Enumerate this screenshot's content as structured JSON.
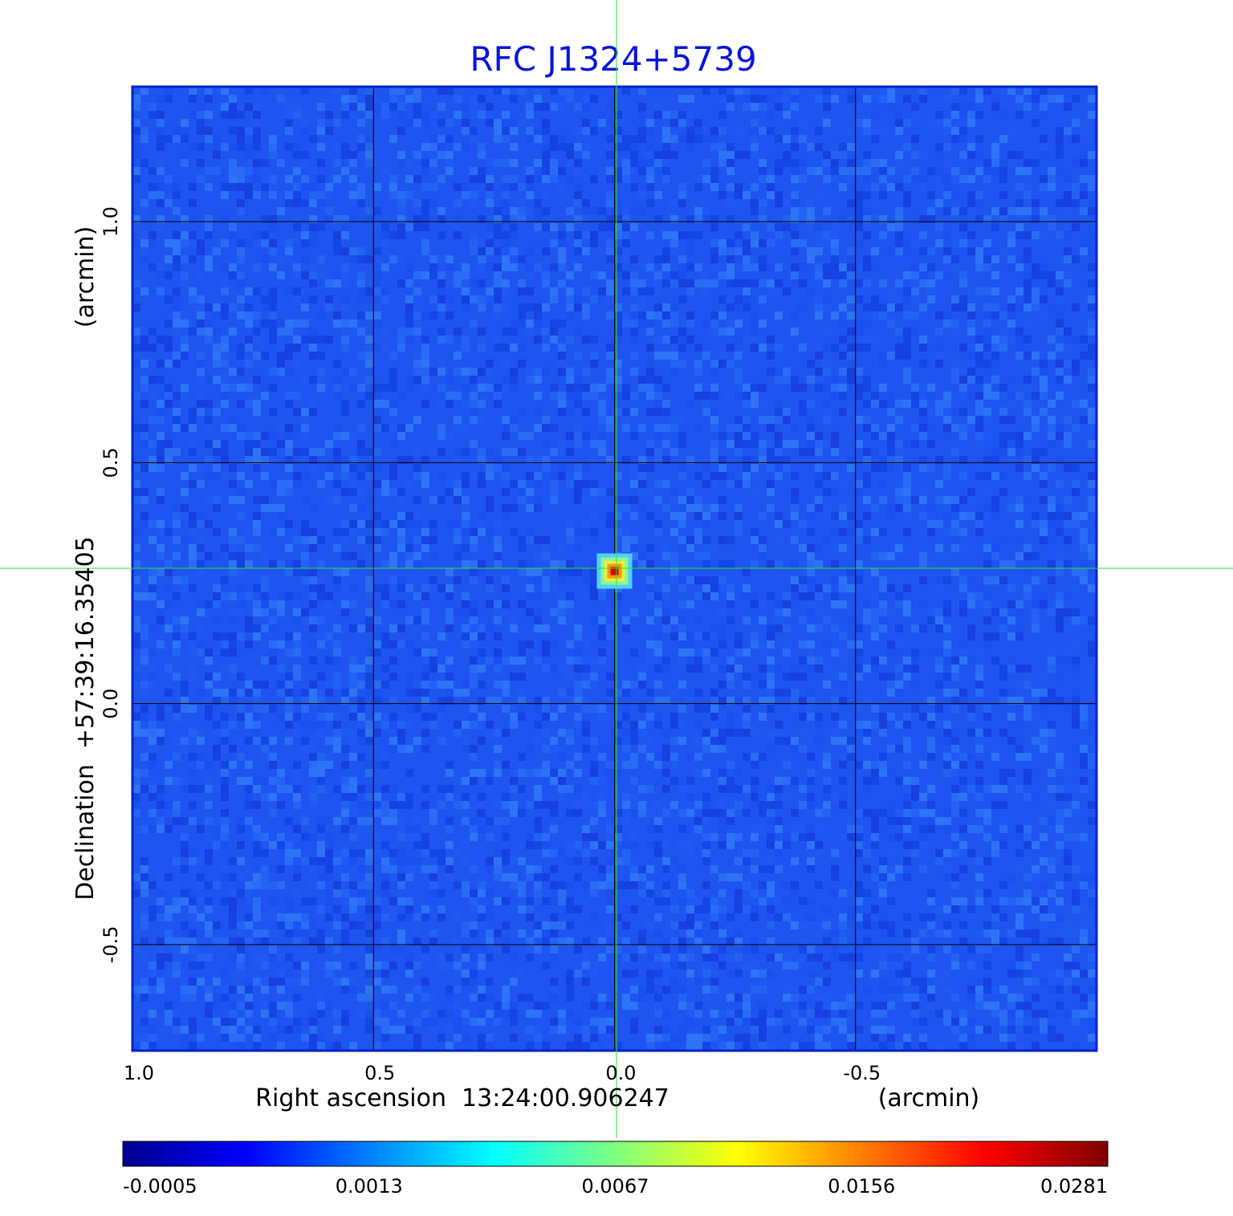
{
  "chart_data": {
    "type": "heatmap",
    "title": "RFC J1324+5739",
    "xlabel": "Right ascension  13:24:00.906247",
    "xunit": "(arcmin)",
    "ylabel": "Declination  +57:39:16.35405",
    "yunit": "(arcmin)",
    "x_axis_reversed": true,
    "xlim": [
      1.0,
      -1.0
    ],
    "ylim": [
      -0.72,
      1.28
    ],
    "x_ticks": [
      {
        "value": 1.0,
        "label": "1.0"
      },
      {
        "value": 0.5,
        "label": "0.5"
      },
      {
        "value": 0.0,
        "label": "0.0"
      },
      {
        "value": -0.5,
        "label": "-0.5"
      }
    ],
    "y_ticks": [
      {
        "value": 1.0,
        "label": "1.0"
      },
      {
        "value": 0.5,
        "label": "0.5"
      },
      {
        "value": 0.0,
        "label": "0.0"
      },
      {
        "value": -0.5,
        "label": "-0.5"
      }
    ],
    "grid": true,
    "grid_color": "#000000",
    "crosshair_color": "#33dd33",
    "source_peak": {
      "x": 0.0,
      "y": 0.275,
      "value": 0.0281
    },
    "colormap": "jet",
    "colorbar": {
      "placement": "bottom",
      "ticks": [
        {
          "value": -0.0005,
          "label": "-0.0005"
        },
        {
          "value": 0.0013,
          "label": "0.0013"
        },
        {
          "value": 0.0067,
          "label": "0.0067"
        },
        {
          "value": 0.0156,
          "label": "0.0156"
        },
        {
          "value": 0.0281,
          "label": "0.0281"
        }
      ]
    },
    "colors": {
      "title": "#0a14d8",
      "background_map": "#1e55f0"
    }
  }
}
